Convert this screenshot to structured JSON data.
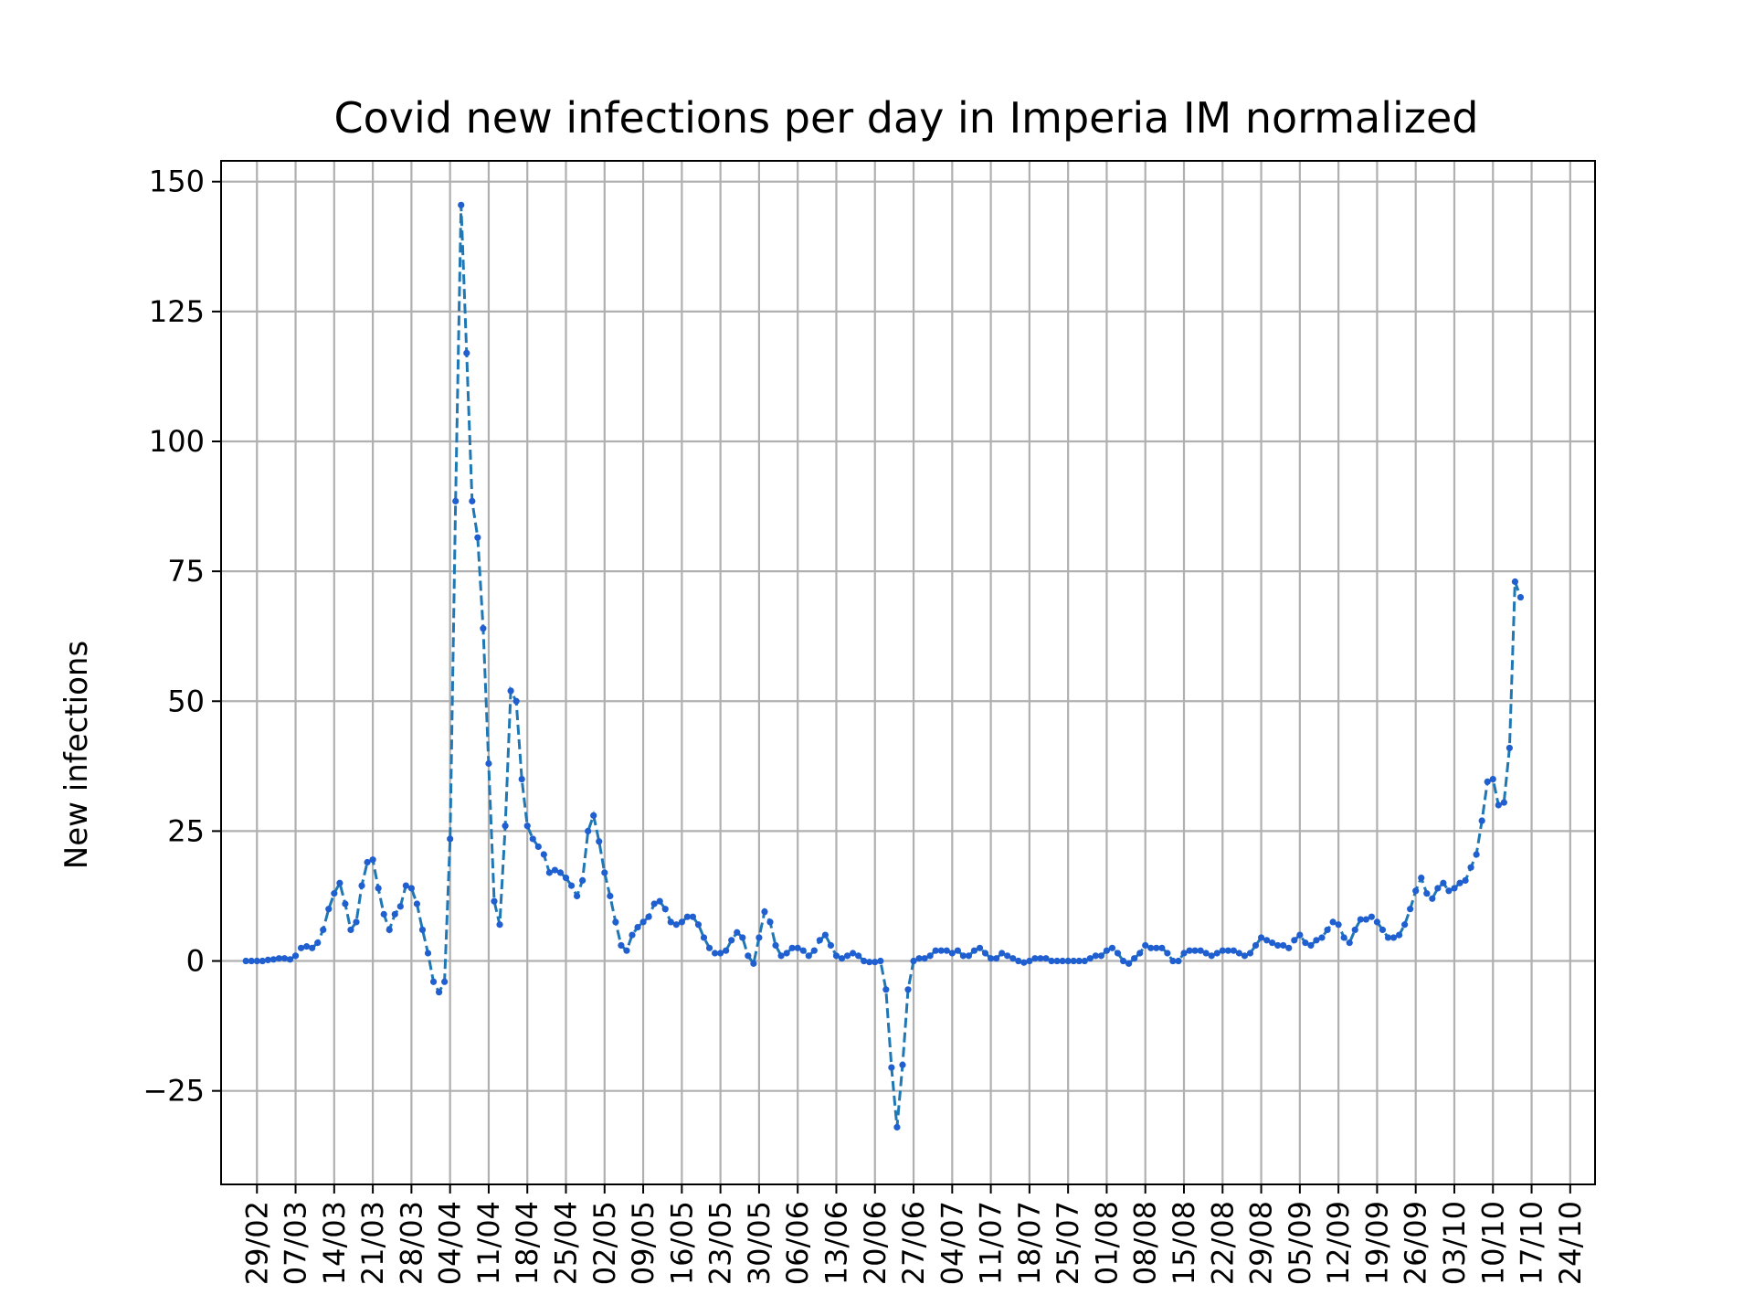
{
  "chart_data": {
    "type": "line",
    "title": "Covid new infections per day in Imperia IM normalized",
    "xlabel": "",
    "ylabel": "New infections",
    "ylim": [
      -43,
      154
    ],
    "yticks": [
      -25,
      0,
      25,
      50,
      75,
      100,
      125,
      150
    ],
    "x_start": "2020-02-27",
    "x_range": [
      -4.5,
      244.5
    ],
    "xtick_labels": [
      "29/02",
      "07/03",
      "14/03",
      "21/03",
      "28/03",
      "04/04",
      "11/04",
      "18/04",
      "25/04",
      "02/05",
      "09/05",
      "16/05",
      "23/05",
      "30/05",
      "06/06",
      "13/06",
      "20/06",
      "27/06",
      "04/07",
      "11/07",
      "18/07",
      "25/07",
      "01/08",
      "08/08",
      "15/08",
      "22/08",
      "29/08",
      "05/09",
      "12/09",
      "19/09",
      "26/09",
      "03/10",
      "10/10",
      "17/10",
      "24/10"
    ],
    "grid": true,
    "line_style": "dashed",
    "marker": "dot",
    "color": "#1f77b4",
    "series": [
      {
        "values": [
          0,
          0,
          0,
          0,
          0.2,
          0.3,
          0.5,
          0.5,
          0.3,
          1,
          2.5,
          2.8,
          2.5,
          3.5,
          6,
          10,
          13,
          15,
          11,
          6,
          7.5,
          14.5,
          19,
          19.5,
          14,
          9,
          6,
          9,
          10.5,
          14.5,
          14,
          11,
          6,
          1.5,
          -4,
          -6,
          -4,
          23.5,
          88.5,
          145.5,
          117,
          88.5,
          81.5,
          64,
          38,
          11.5,
          7,
          26,
          52,
          50,
          35,
          26,
          23.5,
          22,
          20.5,
          17,
          17.5,
          17,
          16,
          14.5,
          12.5,
          15.5,
          25,
          28,
          23,
          17,
          12.5,
          7.5,
          3,
          2,
          5,
          6.5,
          7.5,
          8.5,
          11,
          11.5,
          10,
          7.5,
          7,
          7.5,
          8.5,
          8.5,
          7,
          4.5,
          2.5,
          1.5,
          1.5,
          2,
          4,
          5.5,
          4.5,
          1,
          -0.5,
          4.5,
          9.5,
          7.5,
          3,
          1,
          1.5,
          2.5,
          2.5,
          2,
          1,
          2,
          4,
          5,
          3,
          1,
          0.5,
          1,
          1.5,
          1,
          0,
          -0.2,
          -0.2,
          0,
          -5.5,
          -20.5,
          -32,
          -20,
          -5.5,
          0,
          0.5,
          0.5,
          1,
          2,
          2,
          2,
          1.5,
          2,
          1,
          1,
          2,
          2.5,
          1.5,
          0.5,
          0.5,
          1.5,
          1,
          0.5,
          0,
          -0.3,
          0,
          0.5,
          0.5,
          0.5,
          0,
          0,
          0,
          0,
          0,
          0,
          0,
          0.5,
          1,
          1,
          2,
          2.5,
          1.5,
          0,
          -0.5,
          0.5,
          1.5,
          3,
          2.5,
          2.5,
          2.5,
          1.5,
          0,
          0,
          1.5,
          2,
          2,
          2,
          1.5,
          1,
          1.5,
          2,
          2,
          2,
          1.5,
          1,
          1.5,
          3,
          4.5,
          4,
          3.5,
          3,
          3,
          2.5,
          4,
          5,
          3.5,
          3,
          4,
          4.5,
          6,
          7.5,
          7,
          4.5,
          3.5,
          6,
          8,
          8,
          8.5,
          7.5,
          6,
          4.5,
          4.5,
          5,
          7,
          10,
          13.5,
          16,
          13,
          12,
          14,
          15,
          13.5,
          14,
          15,
          15.5,
          18,
          20.5,
          27,
          34.5,
          35,
          30,
          30.5,
          41,
          73,
          70
        ]
      }
    ]
  }
}
